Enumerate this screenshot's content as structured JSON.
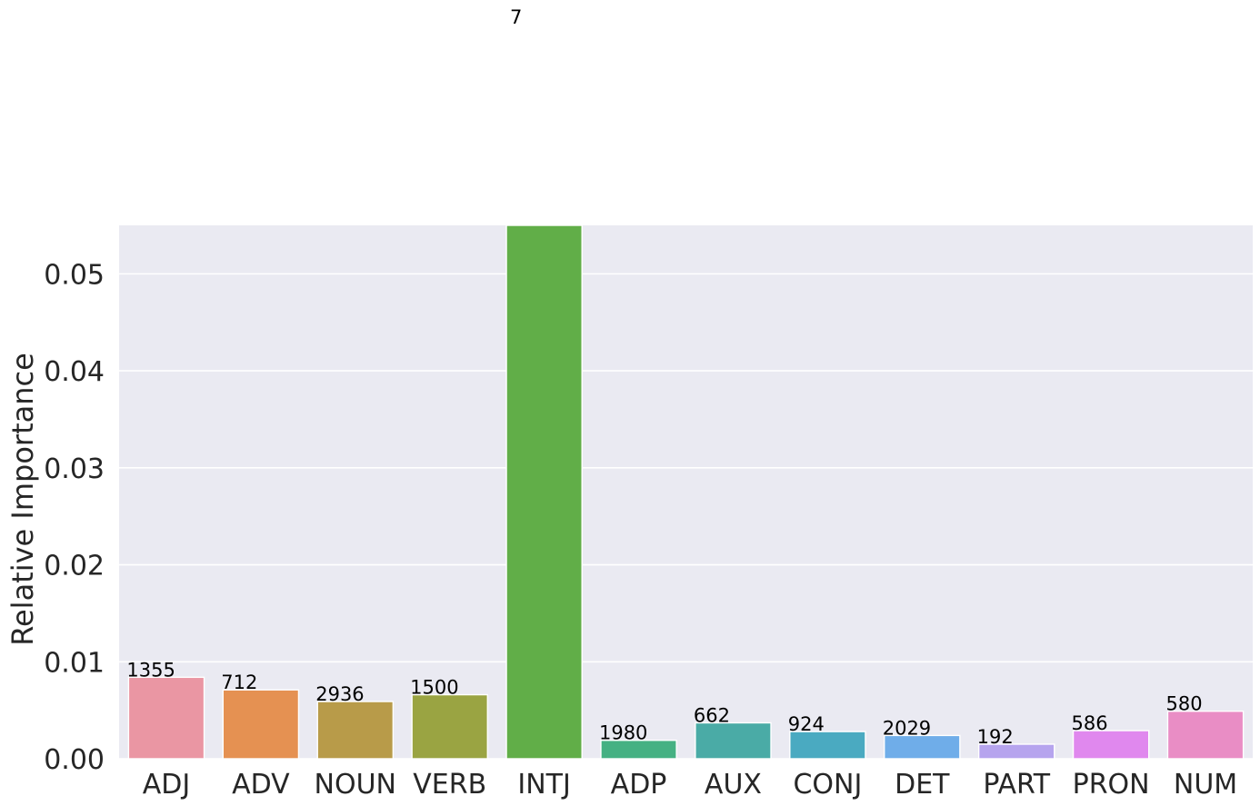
{
  "chart_data": {
    "type": "bar",
    "categories": [
      "ADJ",
      "ADV",
      "NOUN",
      "VERB",
      "INTJ",
      "ADP",
      "AUX",
      "CONJ",
      "DET",
      "PART",
      "PRON",
      "NUM"
    ],
    "values": [
      0.0084,
      0.0071,
      0.0059,
      0.0066,
      0.0555,
      0.0019,
      0.0037,
      0.0028,
      0.0024,
      0.0015,
      0.0029,
      0.0049
    ],
    "data_labels": [
      "1355",
      "712",
      "2936",
      "1500",
      "7",
      "1980",
      "662",
      "924",
      "2029",
      "192",
      "586",
      "580"
    ],
    "colors": [
      "#ea96a3",
      "#e59152",
      "#b89b49",
      "#9aa442",
      "#61ae48",
      "#45b183",
      "#4aaba6",
      "#4aaac1",
      "#6fade9",
      "#b6a4ee",
      "#e088ee",
      "#e98dc5"
    ],
    "title": "",
    "xlabel": "",
    "ylabel": "Relative Importance",
    "ylim": [
      0,
      0.055
    ],
    "yticks": [
      "0.00",
      "0.01",
      "0.02",
      "0.03",
      "0.04",
      "0.05"
    ],
    "background_color": "#eaeaf2",
    "grid": true
  }
}
